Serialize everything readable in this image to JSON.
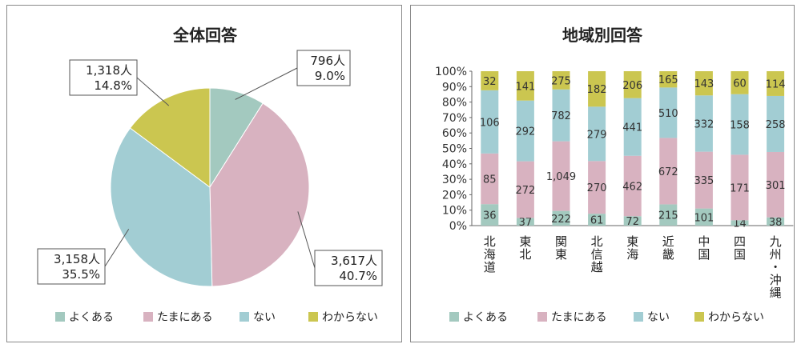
{
  "chart_data": [
    {
      "type": "pie",
      "title": "全体回答",
      "categories": [
        "よくある",
        "たまにある",
        "ない",
        "わからない"
      ],
      "values": [
        796,
        3617,
        3158,
        1318
      ],
      "labels": [
        {
          "count": "796人",
          "percent": "9.0%"
        },
        {
          "count": "3,617人",
          "percent": "40.7%"
        },
        {
          "count": "3,158人",
          "percent": "35.5%"
        },
        {
          "count": "1,318人",
          "percent": "14.8%"
        }
      ],
      "colors": [
        "#a3c9bf",
        "#d8b2c0",
        "#a2cdd3",
        "#cbc650"
      ],
      "legend": [
        "よくある",
        "たまにある",
        "ない",
        "わからない"
      ],
      "legend_position": "bottom"
    },
    {
      "type": "bar",
      "stacked": "percent",
      "title": "地域別回答",
      "categories": [
        "北海道",
        "東北",
        "関東",
        "北信越",
        "東海",
        "近畿",
        "中国",
        "四国",
        "九州・沖縄"
      ],
      "category_lines": [
        [
          "北",
          "海",
          "道"
        ],
        [
          "東",
          "北"
        ],
        [
          "関",
          "東"
        ],
        [
          "北",
          "信",
          "越"
        ],
        [
          "東",
          "海"
        ],
        [
          "近",
          "畿"
        ],
        [
          "中",
          "国"
        ],
        [
          "四",
          "国"
        ],
        [
          "九",
          "州",
          "・",
          "沖",
          "縄"
        ]
      ],
      "series": [
        {
          "name": "よくある",
          "color": "#a3c9bf",
          "values": [
            36,
            37,
            222,
            61,
            72,
            215,
            101,
            14,
            38
          ],
          "labels": [
            "36",
            "37",
            "222",
            "61",
            "72",
            "215",
            "101",
            "14",
            "38"
          ]
        },
        {
          "name": "たまにある",
          "color": "#d8b2c0",
          "values": [
            85,
            272,
            1049,
            270,
            462,
            672,
            335,
            171,
            301
          ],
          "labels": [
            "85",
            "272",
            "1,049",
            "270",
            "462",
            "672",
            "335",
            "171",
            "301"
          ]
        },
        {
          "name": "ない",
          "color": "#a2cdd3",
          "values": [
            106,
            292,
            782,
            279,
            441,
            510,
            332,
            158,
            258
          ],
          "labels": [
            "106",
            "292",
            "782",
            "279",
            "441",
            "510",
            "332",
            "158",
            "258"
          ]
        },
        {
          "name": "わからない",
          "color": "#cbc650",
          "values": [
            32,
            141,
            275,
            182,
            206,
            165,
            143,
            60,
            114
          ],
          "labels": [
            "32",
            "141",
            "275",
            "182",
            "206",
            "165",
            "143",
            "60",
            "114"
          ]
        }
      ],
      "yticks": [
        "0%",
        "10%",
        "20%",
        "30%",
        "40%",
        "50%",
        "60%",
        "70%",
        "80%",
        "90%",
        "100%"
      ],
      "ylim": [
        0,
        100
      ],
      "grid": false,
      "legend_position": "bottom"
    }
  ]
}
